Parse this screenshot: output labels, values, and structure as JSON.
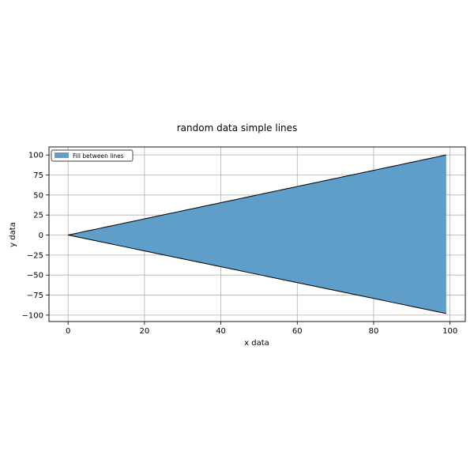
{
  "chart_data": {
    "type": "area",
    "title": "random data simple lines",
    "xlabel": "x data",
    "ylabel": "y data",
    "xlim": [
      -5,
      104
    ],
    "ylim": [
      -108,
      110
    ],
    "xticks": [
      0,
      20,
      40,
      60,
      80,
      100
    ],
    "yticks": [
      -100,
      -75,
      -50,
      -25,
      0,
      25,
      50,
      75,
      100
    ],
    "grid": true,
    "legend": {
      "position": "top-left",
      "entries": [
        "Fill between lines"
      ]
    },
    "colors": {
      "fill": "#5f9ec9",
      "line": "#000000",
      "grid": "#b0b0b0"
    },
    "x_range": [
      0,
      99
    ],
    "series": [
      {
        "role": "upper",
        "x_start": 0,
        "x_end": 99,
        "y_start": 0,
        "y_end": 100
      },
      {
        "role": "lower",
        "x_start": 0,
        "x_end": 99,
        "y_start": 0,
        "y_end": -98
      }
    ]
  }
}
